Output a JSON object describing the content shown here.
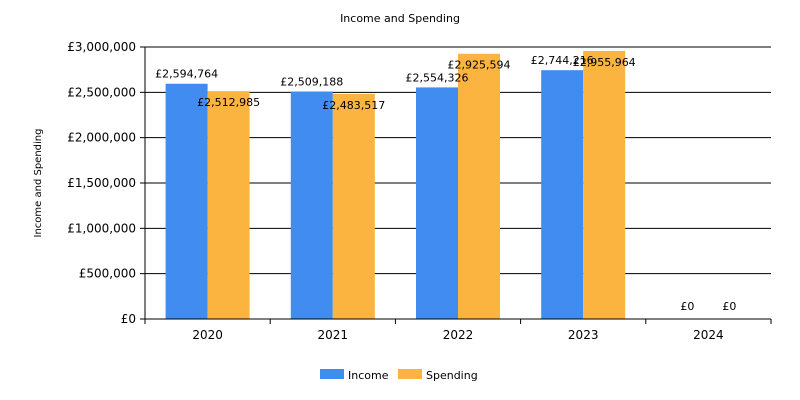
{
  "chart_data": {
    "type": "bar",
    "title": "Income and Spending",
    "xlabel": "",
    "ylabel": "Income and Spending",
    "categories": [
      "2020",
      "2021",
      "2022",
      "2023",
      "2024"
    ],
    "series": [
      {
        "name": "Income",
        "color": "#418cf0",
        "values": [
          2594764,
          2509188,
          2554326,
          2744216,
          0
        ],
        "labels": [
          "£2,594,764",
          "£2,509,188",
          "£2,554,326",
          "£2,744,216",
          "£0"
        ]
      },
      {
        "name": "Spending",
        "color": "#fcb441",
        "values": [
          2512985,
          2483517,
          2925594,
          2955964,
          0
        ],
        "labels": [
          "£2,512,985",
          "£2,483,517",
          "£2,925,594",
          "£2,955,964",
          "£0"
        ]
      }
    ],
    "ylim": [
      0,
      3000000
    ],
    "yticks": [
      {
        "value": 0,
        "label": "£0"
      },
      {
        "value": 500000,
        "label": "£500,000"
      },
      {
        "value": 1000000,
        "label": "£1,000,000"
      },
      {
        "value": 1500000,
        "label": "£1,500,000"
      },
      {
        "value": 2000000,
        "label": "£2,000,000"
      },
      {
        "value": 2500000,
        "label": "£2,500,000"
      },
      {
        "value": 3000000,
        "label": "£3,000,000"
      }
    ],
    "grid": true,
    "legend_position": "bottom"
  }
}
